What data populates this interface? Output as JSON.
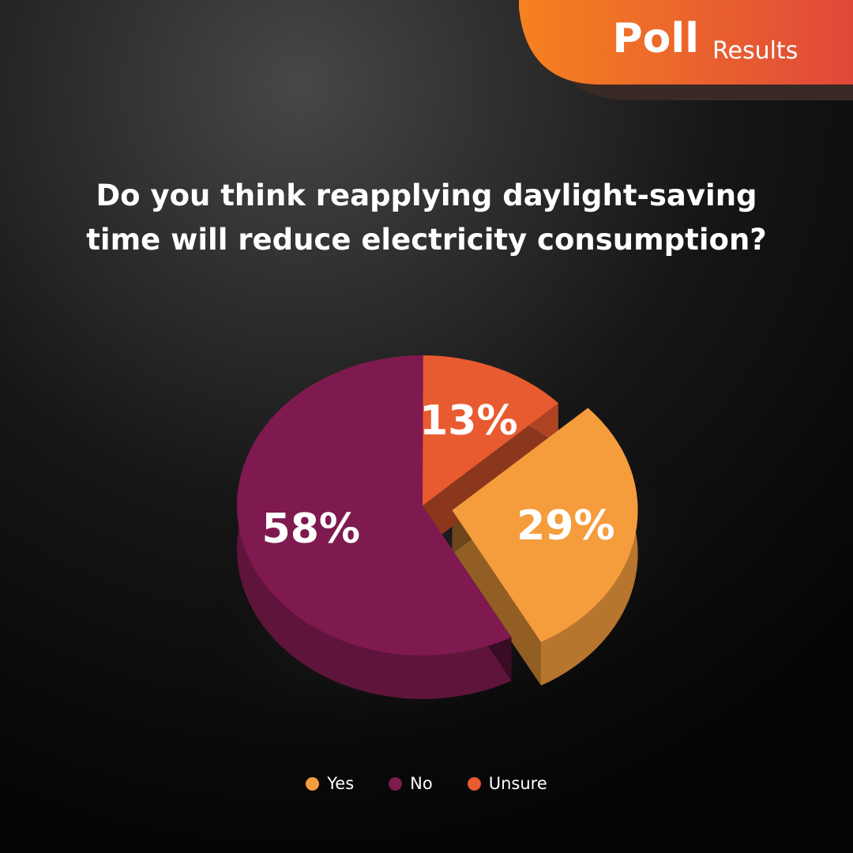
{
  "header": {
    "bold": "Poll",
    "light": "Results"
  },
  "chart_data": {
    "type": "pie",
    "title": "Do you think reapplying daylight-saving time will reduce electricity consumption?",
    "categories": [
      "Yes",
      "No",
      "Unsure"
    ],
    "values": [
      29,
      58,
      13
    ],
    "value_labels": [
      "29%",
      "58%",
      "13%"
    ],
    "colors": [
      "#f59c3c",
      "#7e1a4f",
      "#e85b30"
    ],
    "legend": "bottom"
  }
}
